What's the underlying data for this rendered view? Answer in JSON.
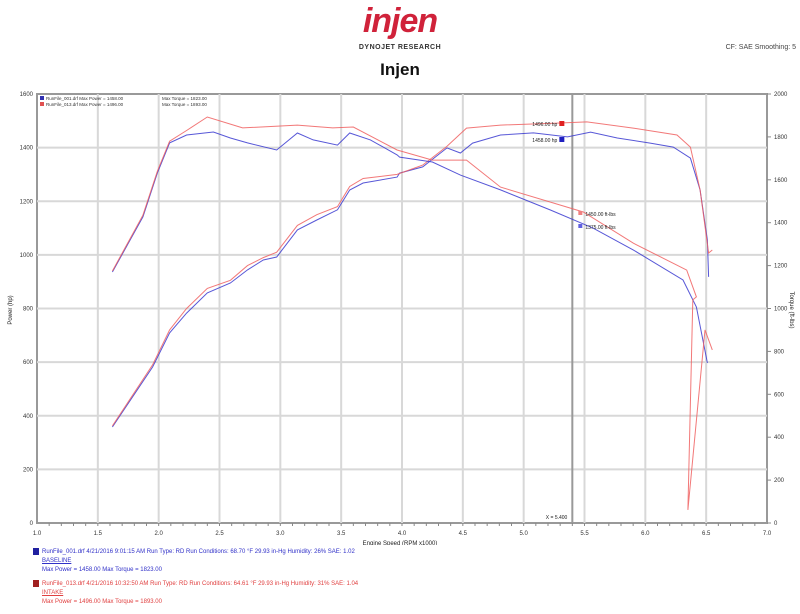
{
  "header": {
    "logo": "injen",
    "brand": "DYNOJET RESEARCH",
    "settings": "CF: SAE  Smoothing: 5",
    "title": "Injen"
  },
  "colors": {
    "run1": "#3a3ad0",
    "run2": "#f06060",
    "grid": "#d8d8d8",
    "cursor": "#999999"
  },
  "legend": [
    {
      "label": "RunFile_001.drf Max Power = 1458.00",
      "torque": "Max Torque = 1823.00"
    },
    {
      "label": "RunFile_013.drf Max Power = 1496.00",
      "torque": "Max Torque = 1893.00"
    }
  ],
  "cursor": {
    "rpm": 5.4,
    "label": "X = 5.400"
  },
  "markers": {
    "power_run2": "1496.00 hp",
    "power_run1": "1458.00 hp",
    "torque_run2": "1450.00 ft-lbs",
    "torque_run1": "1375.00 ft-lbs"
  },
  "footer": [
    {
      "line1": "RunFile_001.drf  4/21/2016 9:01:15 AM  Run Type: RD  Run Conditions: 68.70 °F  29.93 in-Hg  Humidity: 26%  SAE: 1.02",
      "line2": "BASELINE",
      "line3": "Max Power = 1458.00  Max Torque = 1823.00"
    },
    {
      "line1": "RunFile_013.drf  4/21/2016 10:32:50 AM  Run Type: RD  Run Conditions: 64.61 °F  29.93 in-Hg  Humidity: 31%  SAE: 1.04",
      "line2": "INTAKE",
      "line3": "Max Power = 1496.00  Max Torque = 1893.00"
    }
  ],
  "chart_data": {
    "type": "line",
    "xlabel": "Engine Speed (RPM x1000)",
    "ylabel": "Power (hp)",
    "y2label": "Torque (ft-lbs)",
    "xlim": [
      1.0,
      7.0
    ],
    "ylim": [
      0,
      1600
    ],
    "y2lim": [
      0,
      2000
    ],
    "xticks": [
      "1.0",
      "1.5",
      "2.0",
      "2.5",
      "3.0",
      "3.5",
      "4.0",
      "4.5",
      "5.0",
      "5.5",
      "6.0",
      "6.5",
      "7.0"
    ],
    "yticks": [
      "0",
      "200",
      "400",
      "600",
      "800",
      "1000",
      "1200",
      "1400",
      "1600"
    ],
    "y2ticks": [
      "0",
      "200",
      "400",
      "600",
      "800",
      "1000",
      "1200",
      "1400",
      "1600",
      "1800",
      "2000"
    ],
    "grid": true,
    "legend_position": "top-left",
    "series": [
      {
        "run": "run1",
        "kind": "power",
        "axis": "left",
        "points": [
          [
            1.62,
            358
          ],
          [
            1.95,
            582
          ],
          [
            2.09,
            709
          ],
          [
            2.23,
            783
          ],
          [
            2.4,
            858
          ],
          [
            2.59,
            895
          ],
          [
            2.73,
            944
          ],
          [
            2.86,
            981
          ],
          [
            2.97,
            992
          ],
          [
            3.14,
            1093
          ],
          [
            3.3,
            1130
          ],
          [
            3.47,
            1168
          ],
          [
            3.57,
            1242
          ],
          [
            3.68,
            1268
          ],
          [
            3.96,
            1290
          ],
          [
            3.98,
            1305
          ],
          [
            4.17,
            1328
          ],
          [
            4.37,
            1399
          ],
          [
            4.48,
            1380
          ],
          [
            4.58,
            1417
          ],
          [
            4.81,
            1447
          ],
          [
            5.08,
            1455
          ],
          [
            5.36,
            1440
          ],
          [
            5.55,
            1458
          ],
          [
            5.77,
            1436
          ],
          [
            6.04,
            1417
          ],
          [
            6.23,
            1402
          ],
          [
            6.37,
            1361
          ],
          [
            6.45,
            1242
          ],
          [
            6.51,
            1055
          ],
          [
            6.52,
            918
          ]
        ]
      },
      {
        "run": "run2",
        "kind": "power",
        "axis": "left",
        "points": [
          [
            1.62,
            362
          ],
          [
            1.95,
            590
          ],
          [
            2.09,
            720
          ],
          [
            2.23,
            800
          ],
          [
            2.4,
            875
          ],
          [
            2.59,
            905
          ],
          [
            2.73,
            960
          ],
          [
            2.86,
            990
          ],
          [
            2.97,
            1010
          ],
          [
            3.14,
            1110
          ],
          [
            3.3,
            1150
          ],
          [
            3.47,
            1180
          ],
          [
            3.57,
            1255
          ],
          [
            3.68,
            1285
          ],
          [
            3.96,
            1300
          ],
          [
            4.17,
            1335
          ],
          [
            4.37,
            1405
          ],
          [
            4.53,
            1473
          ],
          [
            4.81,
            1484
          ],
          [
            5.3,
            1492
          ],
          [
            5.52,
            1496
          ],
          [
            5.9,
            1473
          ],
          [
            6.26,
            1447
          ],
          [
            6.37,
            1402
          ],
          [
            6.45,
            1242
          ],
          [
            6.52,
            1007
          ],
          [
            6.55,
            1018
          ]
        ]
      },
      {
        "run": "run1",
        "kind": "torque",
        "axis": "right",
        "points": [
          [
            1.62,
            1170
          ],
          [
            1.87,
            1427
          ],
          [
            1.99,
            1632
          ],
          [
            2.09,
            1772
          ],
          [
            2.23,
            1809
          ],
          [
            2.45,
            1823
          ],
          [
            2.59,
            1795
          ],
          [
            2.73,
            1772
          ],
          [
            2.97,
            1739
          ],
          [
            3.14,
            1818
          ],
          [
            3.27,
            1786
          ],
          [
            3.47,
            1762
          ],
          [
            3.57,
            1818
          ],
          [
            3.74,
            1786
          ],
          [
            3.96,
            1716
          ],
          [
            3.98,
            1706
          ],
          [
            4.25,
            1683
          ],
          [
            4.48,
            1622
          ],
          [
            4.81,
            1553
          ],
          [
            5.22,
            1459
          ],
          [
            5.57,
            1375
          ],
          [
            5.9,
            1273
          ],
          [
            6.31,
            1133
          ],
          [
            6.42,
            1007
          ],
          [
            6.51,
            746
          ]
        ]
      },
      {
        "run": "run2",
        "kind": "torque",
        "axis": "right",
        "points": [
          [
            1.62,
            1175
          ],
          [
            1.87,
            1435
          ],
          [
            1.99,
            1640
          ],
          [
            2.09,
            1780
          ],
          [
            2.23,
            1830
          ],
          [
            2.4,
            1893
          ],
          [
            2.69,
            1842
          ],
          [
            3.14,
            1855
          ],
          [
            3.43,
            1842
          ],
          [
            3.6,
            1846
          ],
          [
            3.96,
            1739
          ],
          [
            4.25,
            1692
          ],
          [
            4.53,
            1692
          ],
          [
            4.81,
            1566
          ],
          [
            5.49,
            1450
          ],
          [
            5.9,
            1305
          ],
          [
            6.34,
            1179
          ],
          [
            6.42,
            1054
          ],
          [
            6.39,
            1040
          ],
          [
            6.35,
            61
          ],
          [
            6.49,
            900
          ],
          [
            6.55,
            807
          ]
        ]
      }
    ]
  }
}
